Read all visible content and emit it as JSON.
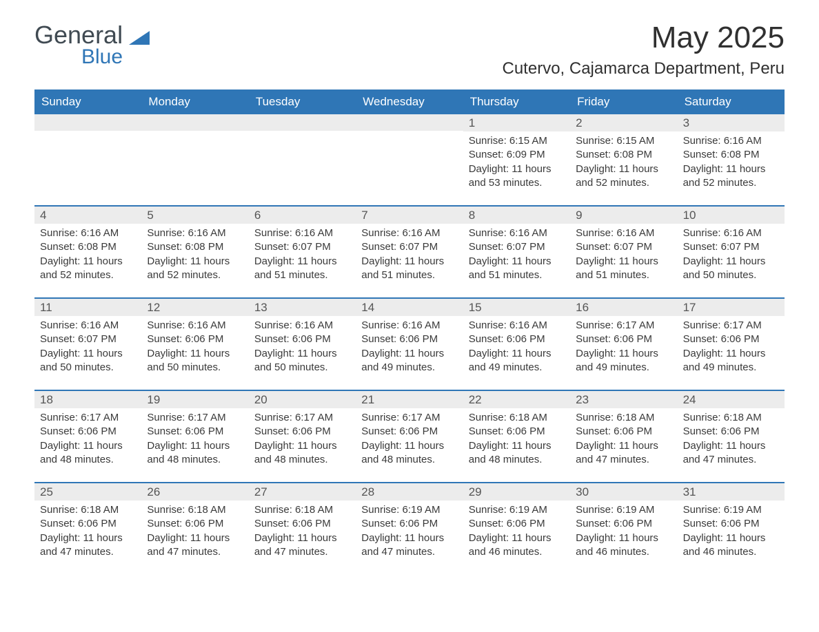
{
  "logo": {
    "text1": "General",
    "text2": "Blue",
    "accent_color": "#2f76b6"
  },
  "title": "May 2025",
  "location": "Cutervo, Cajamarca Department, Peru",
  "colors": {
    "header_bg": "#2f76b6",
    "header_text": "#ffffff",
    "daybar_bg": "#ececec",
    "text": "#3a3a3a",
    "accent": "#2f76b6",
    "background": "#ffffff"
  },
  "day_headers": [
    "Sunday",
    "Monday",
    "Tuesday",
    "Wednesday",
    "Thursday",
    "Friday",
    "Saturday"
  ],
  "weeks": [
    [
      {
        "n": "",
        "sr": "",
        "ss": "",
        "dl": ""
      },
      {
        "n": "",
        "sr": "",
        "ss": "",
        "dl": ""
      },
      {
        "n": "",
        "sr": "",
        "ss": "",
        "dl": ""
      },
      {
        "n": "",
        "sr": "",
        "ss": "",
        "dl": ""
      },
      {
        "n": "1",
        "sr": "Sunrise: 6:15 AM",
        "ss": "Sunset: 6:09 PM",
        "dl": "Daylight: 11 hours and 53 minutes."
      },
      {
        "n": "2",
        "sr": "Sunrise: 6:15 AM",
        "ss": "Sunset: 6:08 PM",
        "dl": "Daylight: 11 hours and 52 minutes."
      },
      {
        "n": "3",
        "sr": "Sunrise: 6:16 AM",
        "ss": "Sunset: 6:08 PM",
        "dl": "Daylight: 11 hours and 52 minutes."
      }
    ],
    [
      {
        "n": "4",
        "sr": "Sunrise: 6:16 AM",
        "ss": "Sunset: 6:08 PM",
        "dl": "Daylight: 11 hours and 52 minutes."
      },
      {
        "n": "5",
        "sr": "Sunrise: 6:16 AM",
        "ss": "Sunset: 6:08 PM",
        "dl": "Daylight: 11 hours and 52 minutes."
      },
      {
        "n": "6",
        "sr": "Sunrise: 6:16 AM",
        "ss": "Sunset: 6:07 PM",
        "dl": "Daylight: 11 hours and 51 minutes."
      },
      {
        "n": "7",
        "sr": "Sunrise: 6:16 AM",
        "ss": "Sunset: 6:07 PM",
        "dl": "Daylight: 11 hours and 51 minutes."
      },
      {
        "n": "8",
        "sr": "Sunrise: 6:16 AM",
        "ss": "Sunset: 6:07 PM",
        "dl": "Daylight: 11 hours and 51 minutes."
      },
      {
        "n": "9",
        "sr": "Sunrise: 6:16 AM",
        "ss": "Sunset: 6:07 PM",
        "dl": "Daylight: 11 hours and 51 minutes."
      },
      {
        "n": "10",
        "sr": "Sunrise: 6:16 AM",
        "ss": "Sunset: 6:07 PM",
        "dl": "Daylight: 11 hours and 50 minutes."
      }
    ],
    [
      {
        "n": "11",
        "sr": "Sunrise: 6:16 AM",
        "ss": "Sunset: 6:07 PM",
        "dl": "Daylight: 11 hours and 50 minutes."
      },
      {
        "n": "12",
        "sr": "Sunrise: 6:16 AM",
        "ss": "Sunset: 6:06 PM",
        "dl": "Daylight: 11 hours and 50 minutes."
      },
      {
        "n": "13",
        "sr": "Sunrise: 6:16 AM",
        "ss": "Sunset: 6:06 PM",
        "dl": "Daylight: 11 hours and 50 minutes."
      },
      {
        "n": "14",
        "sr": "Sunrise: 6:16 AM",
        "ss": "Sunset: 6:06 PM",
        "dl": "Daylight: 11 hours and 49 minutes."
      },
      {
        "n": "15",
        "sr": "Sunrise: 6:16 AM",
        "ss": "Sunset: 6:06 PM",
        "dl": "Daylight: 11 hours and 49 minutes."
      },
      {
        "n": "16",
        "sr": "Sunrise: 6:17 AM",
        "ss": "Sunset: 6:06 PM",
        "dl": "Daylight: 11 hours and 49 minutes."
      },
      {
        "n": "17",
        "sr": "Sunrise: 6:17 AM",
        "ss": "Sunset: 6:06 PM",
        "dl": "Daylight: 11 hours and 49 minutes."
      }
    ],
    [
      {
        "n": "18",
        "sr": "Sunrise: 6:17 AM",
        "ss": "Sunset: 6:06 PM",
        "dl": "Daylight: 11 hours and 48 minutes."
      },
      {
        "n": "19",
        "sr": "Sunrise: 6:17 AM",
        "ss": "Sunset: 6:06 PM",
        "dl": "Daylight: 11 hours and 48 minutes."
      },
      {
        "n": "20",
        "sr": "Sunrise: 6:17 AM",
        "ss": "Sunset: 6:06 PM",
        "dl": "Daylight: 11 hours and 48 minutes."
      },
      {
        "n": "21",
        "sr": "Sunrise: 6:17 AM",
        "ss": "Sunset: 6:06 PM",
        "dl": "Daylight: 11 hours and 48 minutes."
      },
      {
        "n": "22",
        "sr": "Sunrise: 6:18 AM",
        "ss": "Sunset: 6:06 PM",
        "dl": "Daylight: 11 hours and 48 minutes."
      },
      {
        "n": "23",
        "sr": "Sunrise: 6:18 AM",
        "ss": "Sunset: 6:06 PM",
        "dl": "Daylight: 11 hours and 47 minutes."
      },
      {
        "n": "24",
        "sr": "Sunrise: 6:18 AM",
        "ss": "Sunset: 6:06 PM",
        "dl": "Daylight: 11 hours and 47 minutes."
      }
    ],
    [
      {
        "n": "25",
        "sr": "Sunrise: 6:18 AM",
        "ss": "Sunset: 6:06 PM",
        "dl": "Daylight: 11 hours and 47 minutes."
      },
      {
        "n": "26",
        "sr": "Sunrise: 6:18 AM",
        "ss": "Sunset: 6:06 PM",
        "dl": "Daylight: 11 hours and 47 minutes."
      },
      {
        "n": "27",
        "sr": "Sunrise: 6:18 AM",
        "ss": "Sunset: 6:06 PM",
        "dl": "Daylight: 11 hours and 47 minutes."
      },
      {
        "n": "28",
        "sr": "Sunrise: 6:19 AM",
        "ss": "Sunset: 6:06 PM",
        "dl": "Daylight: 11 hours and 47 minutes."
      },
      {
        "n": "29",
        "sr": "Sunrise: 6:19 AM",
        "ss": "Sunset: 6:06 PM",
        "dl": "Daylight: 11 hours and 46 minutes."
      },
      {
        "n": "30",
        "sr": "Sunrise: 6:19 AM",
        "ss": "Sunset: 6:06 PM",
        "dl": "Daylight: 11 hours and 46 minutes."
      },
      {
        "n": "31",
        "sr": "Sunrise: 6:19 AM",
        "ss": "Sunset: 6:06 PM",
        "dl": "Daylight: 11 hours and 46 minutes."
      }
    ]
  ]
}
